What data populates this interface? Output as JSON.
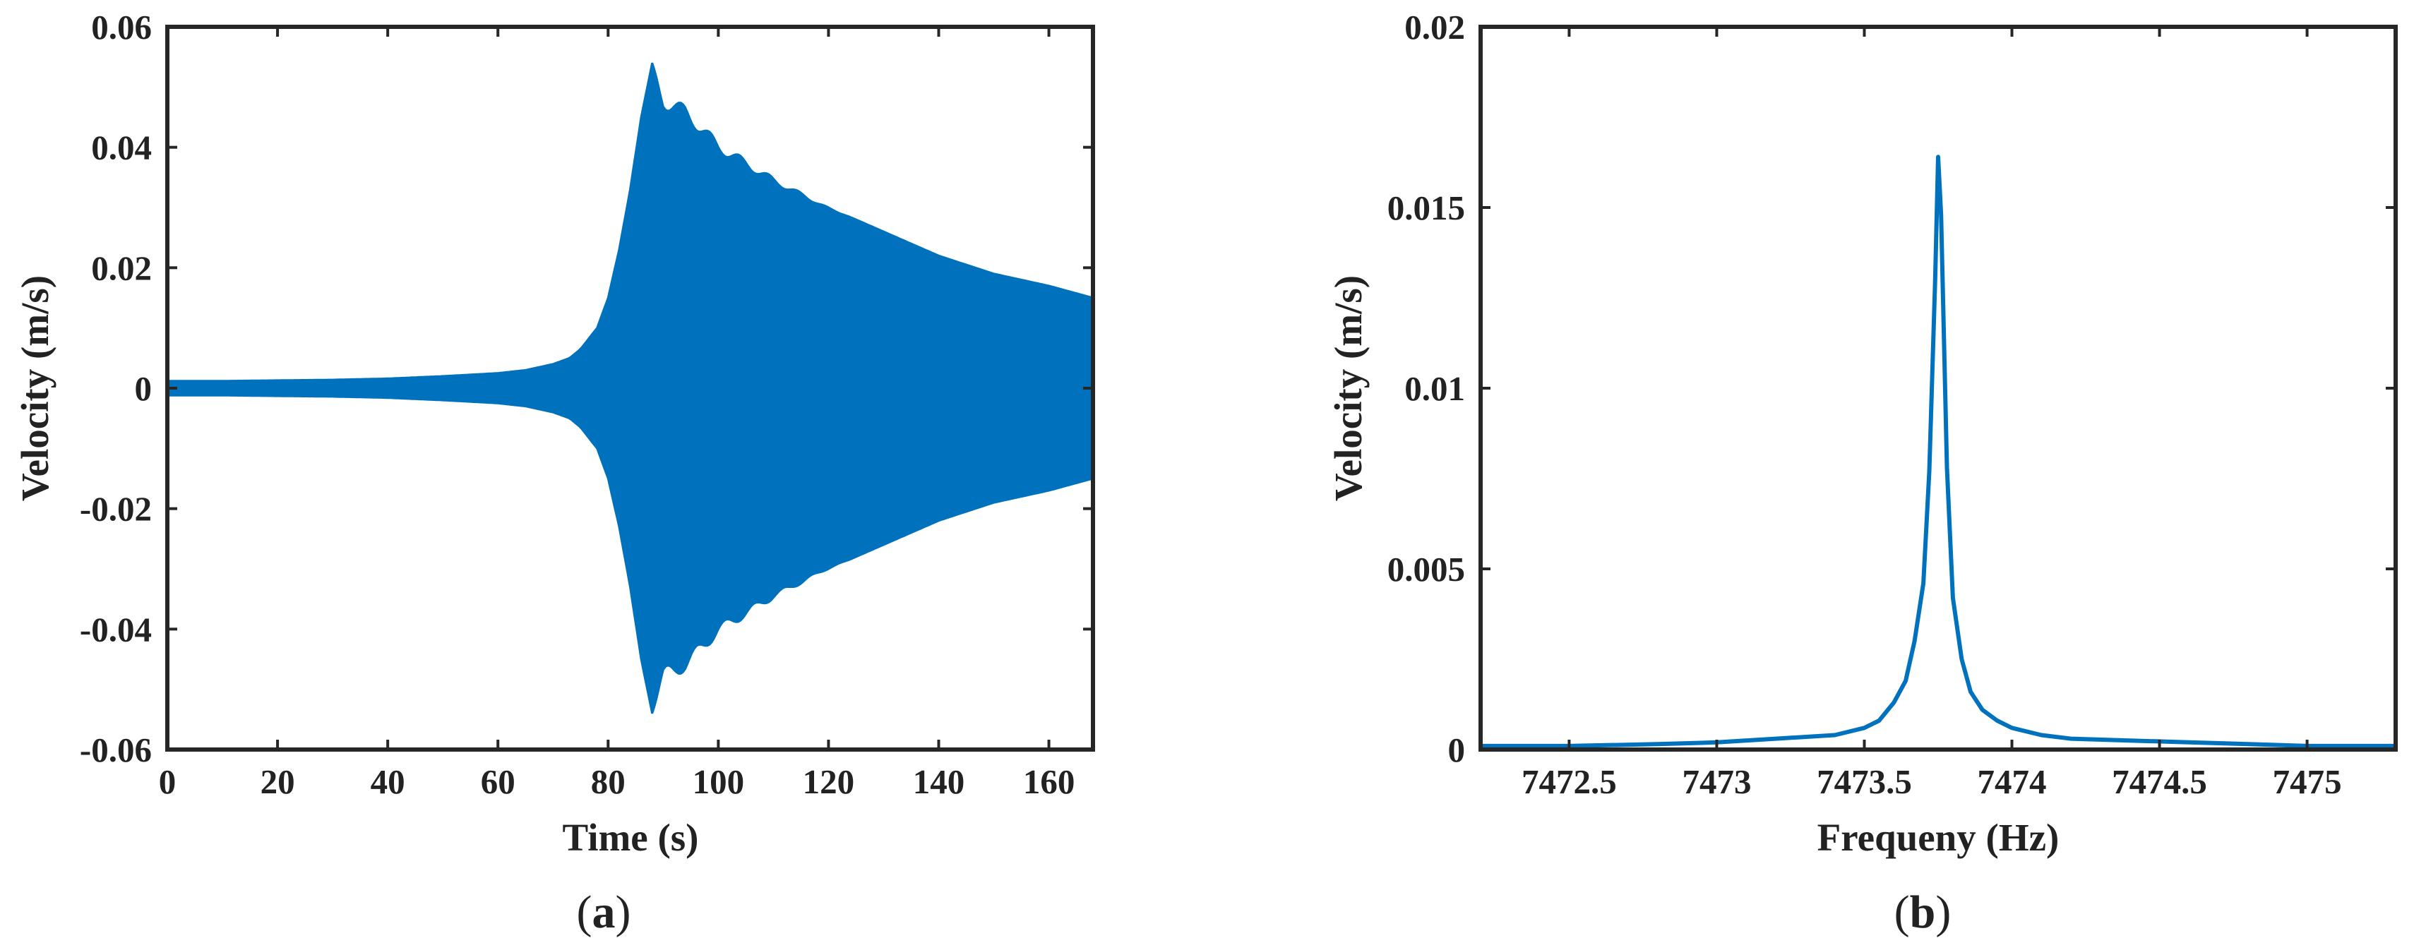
{
  "series_color": "#0072BD",
  "axes_color": "#262626",
  "chart_data": [
    {
      "type": "line",
      "panel": "a",
      "caption_open": "(",
      "caption_letter": "a",
      "caption_close": ")",
      "xlabel": "Time (s)",
      "ylabel": "Velocity (m/s)",
      "xlim": [
        0,
        168
      ],
      "ylim": [
        -0.06,
        0.06
      ],
      "x_ticks": [
        0,
        20,
        40,
        60,
        80,
        100,
        120,
        140,
        160
      ],
      "x_tick_labels": [
        "0",
        "20",
        "40",
        "60",
        "80",
        "100",
        "120",
        "140",
        "160"
      ],
      "y_ticks": [
        0.06,
        0.04,
        0.02,
        0,
        -0.02,
        -0.04,
        -0.06
      ],
      "y_tick_labels": [
        "0.06",
        "0.04",
        "0.02",
        "0",
        "-0.02",
        "-0.04",
        "-0.06"
      ],
      "envelope": {
        "x": [
          0,
          10,
          20,
          30,
          40,
          50,
          60,
          65,
          70,
          73,
          75,
          78,
          80,
          82,
          84,
          86,
          88,
          90,
          94,
          100,
          110,
          120,
          130,
          140,
          150,
          160,
          168
        ],
        "upper": [
          0.0012,
          0.0012,
          0.0013,
          0.0014,
          0.0016,
          0.002,
          0.0025,
          0.003,
          0.004,
          0.005,
          0.0065,
          0.01,
          0.015,
          0.023,
          0.033,
          0.045,
          0.054,
          0.049,
          0.047,
          0.041,
          0.035,
          0.03,
          0.026,
          0.022,
          0.019,
          0.017,
          0.015
        ],
        "lower": [
          -0.0012,
          -0.0012,
          -0.0013,
          -0.0014,
          -0.0016,
          -0.002,
          -0.0025,
          -0.003,
          -0.004,
          -0.005,
          -0.0065,
          -0.01,
          -0.015,
          -0.023,
          -0.033,
          -0.045,
          -0.054,
          -0.049,
          -0.047,
          -0.041,
          -0.035,
          -0.03,
          -0.026,
          -0.022,
          -0.019,
          -0.017,
          -0.015
        ]
      },
      "grid": false
    },
    {
      "type": "line",
      "panel": "b",
      "caption_open": "(",
      "caption_letter": "b",
      "caption_close": ")",
      "xlabel": "Frequeny (Hz)",
      "ylabel": "Velocity (m/s)",
      "xlim": [
        7472.2,
        7475.3
      ],
      "ylim": [
        0,
        0.02
      ],
      "x_ticks": [
        7472.5,
        7473,
        7473.5,
        7474,
        7474.5,
        7475
      ],
      "x_tick_labels": [
        "7472.5",
        "7473",
        "7473.5",
        "7474",
        "7474.5",
        "7475"
      ],
      "y_ticks": [
        0.02,
        0.015,
        0.01,
        0.005,
        0
      ],
      "y_tick_labels": [
        "0.02",
        "0.015",
        "0.01",
        "0.005",
        "0"
      ],
      "x": [
        7472.2,
        7472.5,
        7472.8,
        7473.0,
        7473.2,
        7473.4,
        7473.5,
        7473.55,
        7473.6,
        7473.64,
        7473.67,
        7473.7,
        7473.72,
        7473.74,
        7473.75,
        7473.76,
        7473.78,
        7473.8,
        7473.83,
        7473.86,
        7473.9,
        7473.95,
        7474.0,
        7474.1,
        7474.2,
        7474.4,
        7474.6,
        7474.8,
        7475.0,
        7475.3
      ],
      "y": [
        0.0001,
        0.0001,
        0.00015,
        0.0002,
        0.0003,
        0.0004,
        0.0006,
        0.0008,
        0.0013,
        0.0019,
        0.003,
        0.0046,
        0.0077,
        0.013,
        0.0164,
        0.0148,
        0.0078,
        0.0042,
        0.0025,
        0.0016,
        0.0011,
        0.0008,
        0.0006,
        0.0004,
        0.0003,
        0.00025,
        0.0002,
        0.00015,
        0.0001,
        0.0001
      ],
      "grid": false
    }
  ]
}
